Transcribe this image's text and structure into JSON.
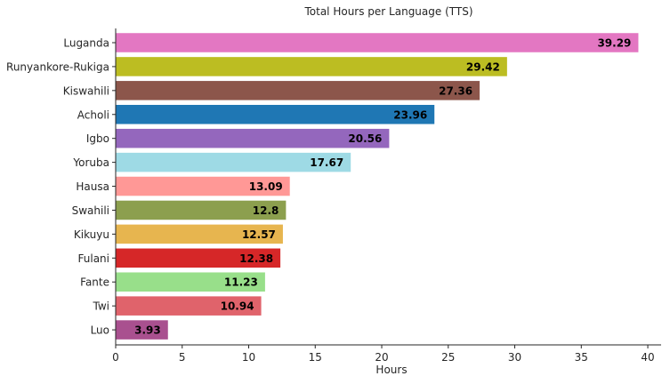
{
  "chart_data": {
    "type": "bar",
    "orientation": "horizontal",
    "title": "Total Hours per Language (TTS)",
    "xlabel": "Hours",
    "ylabel": "",
    "xlim": [
      0,
      41
    ],
    "xticks": [
      0,
      5,
      10,
      15,
      20,
      25,
      30,
      35,
      40
    ],
    "grid": false,
    "categories": [
      "Luganda",
      "Runyankore-Rukiga",
      "Kiswahili",
      "Acholi",
      "Igbo",
      "Yoruba",
      "Hausa",
      "Swahili",
      "Kikuyu",
      "Fulani",
      "Fante",
      "Twi",
      "Luo"
    ],
    "values": [
      39.29,
      29.42,
      27.36,
      23.96,
      20.56,
      17.67,
      13.09,
      12.8,
      12.57,
      12.38,
      11.23,
      10.94,
      3.93
    ],
    "value_labels": [
      "39.29",
      "29.42",
      "27.36",
      "23.96",
      "20.56",
      "17.67",
      "13.09",
      "12.8",
      "12.57",
      "12.38",
      "11.23",
      "10.94",
      "3.93"
    ],
    "colors": [
      "#e377c2",
      "#bcbd22",
      "#8c564b",
      "#1f77b4",
      "#9467bd",
      "#9edae5",
      "#ff9896",
      "#8c9f4e",
      "#e7b54f",
      "#d62728",
      "#98df8a",
      "#e0636b",
      "#a9508f"
    ]
  }
}
